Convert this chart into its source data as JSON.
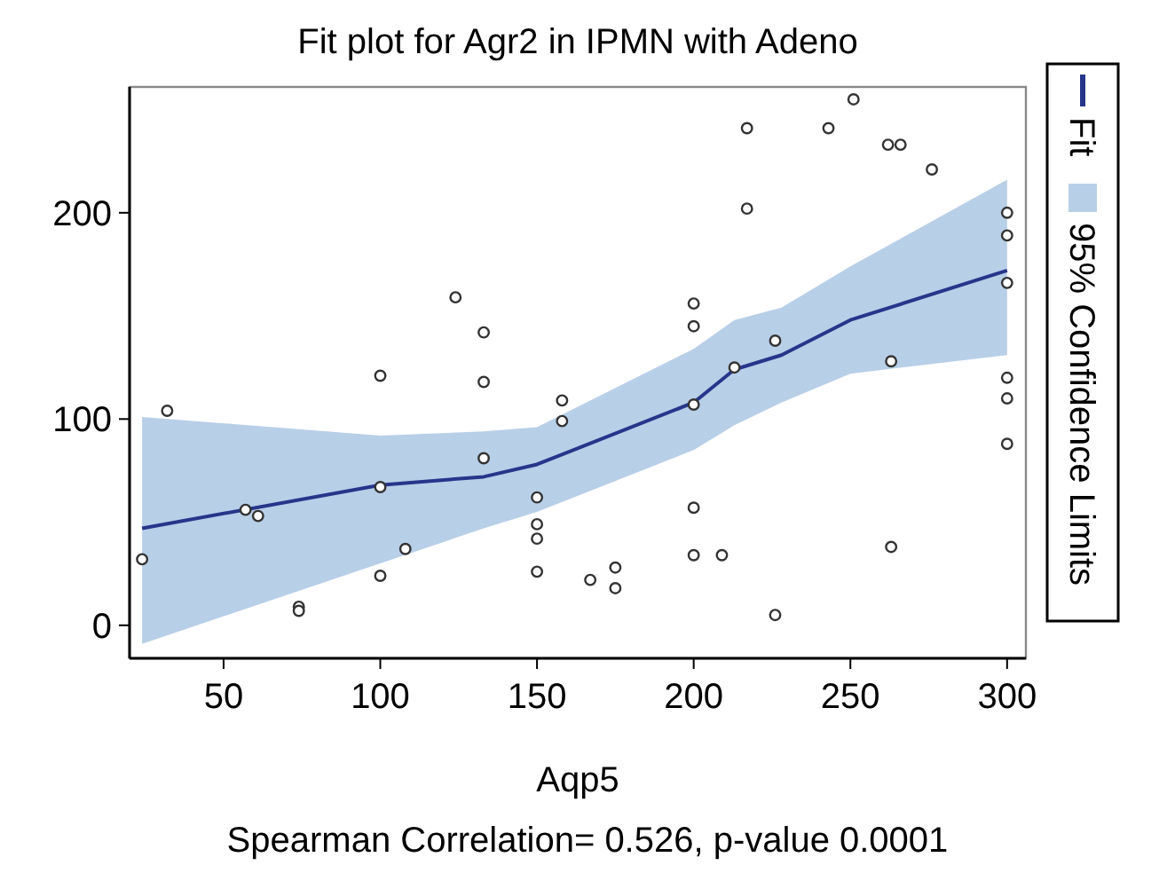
{
  "chart_data": {
    "type": "scatter",
    "title": "Fit plot for Agr2 in IPMN with Adeno",
    "xlabel": "Aqp5",
    "annotations": [
      "95% Confidence Limits",
      "Spearman Correlation= 0.526, p-value 0.0001"
    ],
    "xlim": [
      20,
      306
    ],
    "ylim": [
      -16,
      261
    ],
    "xticks": [
      50,
      100,
      150,
      200,
      250,
      300
    ],
    "yticks": [
      0,
      100,
      200
    ],
    "grid": false,
    "legend": "right",
    "series": [
      {
        "type": "line",
        "name": "Fit",
        "color": "#27368a",
        "marker": "none",
        "x": [
          24,
          100,
          133,
          150,
          200,
          213,
          228,
          250,
          300
        ],
        "values": [
          47,
          68,
          72,
          78,
          108,
          124,
          131,
          148,
          172
        ],
        "lower": [
          -9,
          30,
          47,
          55,
          85,
          97,
          108,
          122,
          131
        ],
        "upper": [
          101,
          92,
          94,
          96,
          134,
          148,
          154,
          174,
          216
        ]
      },
      {
        "color": "#333333",
        "marker": "circle",
        "x": [
          24,
          32,
          57,
          61,
          74,
          74,
          100,
          100,
          108,
          100,
          124,
          133,
          133,
          133,
          150,
          150,
          150,
          150,
          158,
          158,
          167,
          175,
          175,
          200,
          200,
          200,
          200,
          200,
          209,
          213,
          226,
          226,
          217,
          217,
          243,
          251,
          262,
          266,
          276,
          263,
          263,
          300,
          300,
          300,
          300,
          300,
          300
        ],
        "values": [
          32,
          104,
          56,
          53,
          9,
          7,
          121,
          67,
          37,
          24,
          159,
          142,
          118,
          81,
          62,
          49,
          42,
          26,
          109,
          99,
          22,
          28,
          18,
          156,
          145,
          107,
          57,
          34,
          34,
          125,
          138,
          5,
          241,
          202,
          241,
          255,
          233,
          233,
          221,
          128,
          38,
          200,
          189,
          166,
          120,
          110,
          88
        ]
      }
    ]
  }
}
